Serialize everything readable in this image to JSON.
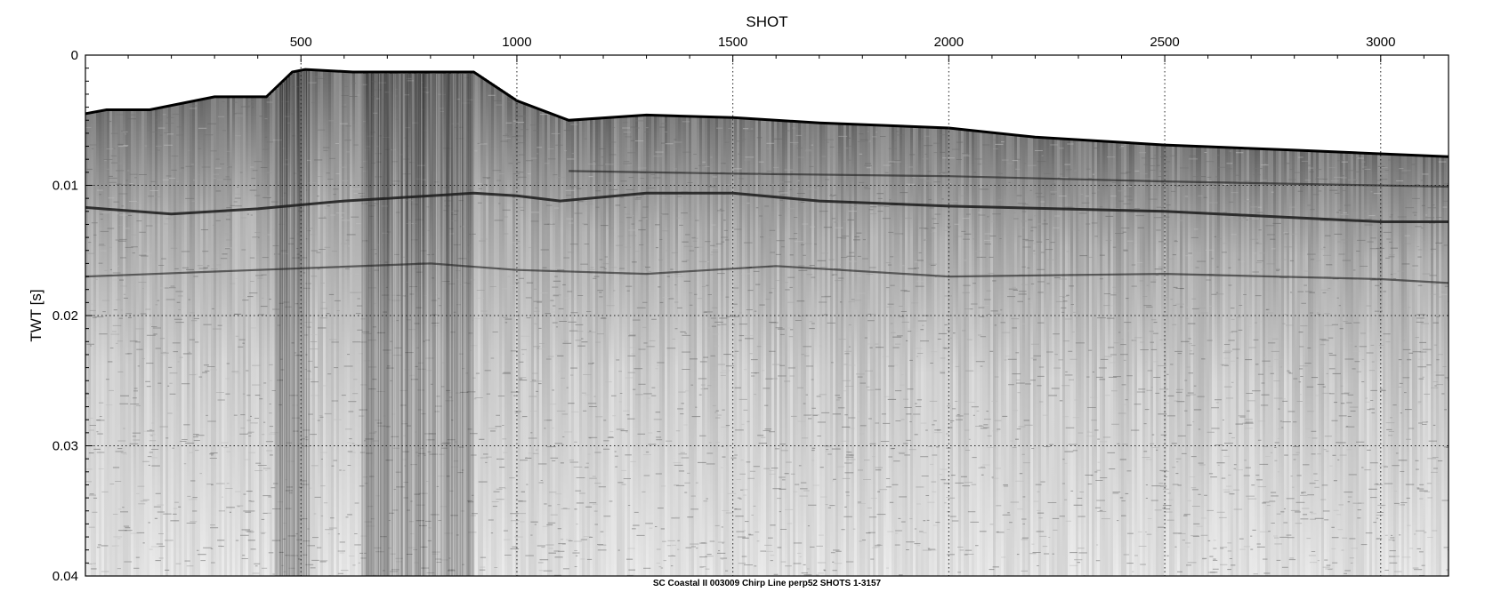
{
  "chart_data": {
    "type": "heatmap",
    "title": "SHOT",
    "xlabel": "SHOT",
    "ylabel": "TWT [s]",
    "caption": "SC Coastal II 003009 Chirp Line perp52 SHOTS 1-3157",
    "xlim": [
      1,
      3157
    ],
    "ylim": [
      0,
      0.04
    ],
    "y_inverted": true,
    "grid": true,
    "x_ticks": [
      500,
      1000,
      1500,
      2000,
      2500,
      3000
    ],
    "x_tick_labels": [
      "500",
      "1000",
      "1500",
      "2000",
      "2500",
      "3000"
    ],
    "y_ticks": [
      0,
      0.01,
      0.02,
      0.03,
      0.04
    ],
    "y_tick_labels": [
      "0",
      "0.01",
      "0.02",
      "0.03",
      "0.04"
    ],
    "colormap": "grayscale",
    "seafloor": {
      "x": [
        1,
        50,
        150,
        300,
        420,
        480,
        510,
        620,
        700,
        900,
        1000,
        1120,
        1300,
        1500,
        1700,
        2000,
        2200,
        2500,
        2800,
        3157
      ],
      "twt": [
        0.0045,
        0.0042,
        0.0042,
        0.0032,
        0.0032,
        0.0013,
        0.0011,
        0.0013,
        0.0013,
        0.0013,
        0.0035,
        0.005,
        0.0046,
        0.0048,
        0.0052,
        0.0056,
        0.0063,
        0.0069,
        0.0073,
        0.0078
      ]
    },
    "reflectors": [
      {
        "x": [
          1,
          200,
          400,
          600,
          800,
          900,
          1000,
          1100,
          1300,
          1500,
          1700,
          2000,
          2500,
          3000,
          3157
        ],
        "twt": [
          0.0117,
          0.0122,
          0.0118,
          0.0112,
          0.0108,
          0.0106,
          0.0108,
          0.0112,
          0.0106,
          0.0106,
          0.0112,
          0.0116,
          0.012,
          0.0128,
          0.0128
        ]
      },
      {
        "x": [
          1,
          400,
          800,
          1000,
          1300,
          1600,
          2000,
          2500,
          3000,
          3157
        ],
        "twt": [
          0.017,
          0.0165,
          0.016,
          0.0165,
          0.0168,
          0.0162,
          0.017,
          0.0168,
          0.0172,
          0.0175
        ]
      },
      {
        "x": [
          1120,
          1500,
          2000,
          2500,
          3157
        ],
        "twt": [
          0.0089,
          0.0091,
          0.0093,
          0.0097,
          0.0101
        ]
      }
    ],
    "noise_zones": [
      [
        440,
        520
      ],
      [
        640,
        900
      ]
    ]
  }
}
